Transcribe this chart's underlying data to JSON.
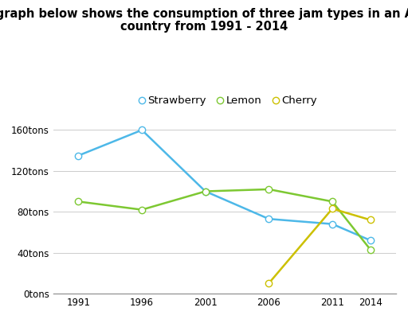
{
  "title_line1": "The graph below shows the consumption of three jam types in an Asian",
  "title_line2": "country from 1991 - 2014",
  "title_fontsize": 10.5,
  "title_fontweight": "bold",
  "background_color": "#ffffff",
  "series": {
    "Strawberry": {
      "years": [
        1991,
        1996,
        2001,
        2006,
        2011,
        2014
      ],
      "values": [
        135,
        160,
        100,
        73,
        68,
        52
      ],
      "color": "#4db8e8",
      "marker": "o",
      "markerfacecolor": "white"
    },
    "Lemon": {
      "years": [
        1991,
        1996,
        2001,
        2006,
        2011,
        2014
      ],
      "values": [
        90,
        82,
        100,
        102,
        90,
        43
      ],
      "color": "#7dc832",
      "marker": "o",
      "markerfacecolor": "white"
    },
    "Cherry": {
      "years": [
        2006,
        2011,
        2014
      ],
      "values": [
        10,
        83,
        72
      ],
      "color": "#ccc000",
      "marker": "o",
      "markerfacecolor": "white"
    }
  },
  "yticks": [
    0,
    40,
    80,
    120,
    160
  ],
  "ytick_labels": [
    "0tons",
    "40tons",
    "80tons",
    "120tons",
    "160tons"
  ],
  "xticks": [
    1991,
    1996,
    2001,
    2006,
    2011,
    2014
  ],
  "xlim": [
    1989,
    2016
  ],
  "ylim": [
    0,
    178
  ],
  "grid_color": "#cccccc",
  "spine_color": "#999999",
  "legend_fontsize": 9.5,
  "markersize": 6,
  "linewidth": 1.8
}
